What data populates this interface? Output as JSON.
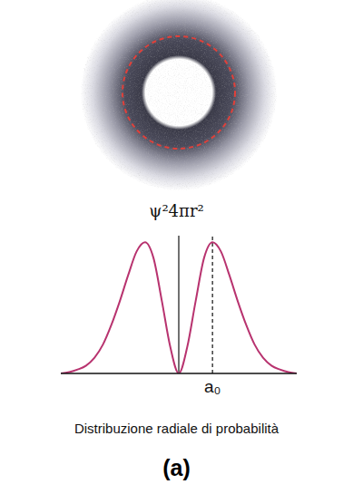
{
  "chart_data": {
    "type": "line",
    "ylabel": "ψ²4πr²",
    "caption": "Distribuzione radiale di probabilità",
    "panel_label": "(a)",
    "x": [
      -3.5,
      -3.25,
      -3,
      -2.75,
      -2.5,
      -2.25,
      -2,
      -1.75,
      -1.5,
      -1.25,
      -1,
      -0.75,
      -0.5,
      -0.25,
      0,
      0.25,
      0.5,
      0.75,
      1,
      1.25,
      1.5,
      1.75,
      2,
      2.25,
      2.5,
      2.75,
      3,
      3.25,
      3.5
    ],
    "values": [
      0,
      0.01,
      0.03,
      0.06,
      0.12,
      0.22,
      0.37,
      0.55,
      0.75,
      0.93,
      1,
      0.88,
      0.55,
      0.2,
      0,
      0.2,
      0.55,
      0.88,
      1,
      0.93,
      0.75,
      0.55,
      0.37,
      0.22,
      0.12,
      0.06,
      0.03,
      0.01,
      0
    ],
    "color": "#b8336f",
    "xlim": [
      -3.5,
      3.5
    ],
    "xticks": [
      {
        "value": 1,
        "label": "a₀"
      }
    ],
    "ylim": [
      0,
      1.05
    ],
    "yticks": [],
    "tick_labels": "x",
    "grid": false
  }
}
